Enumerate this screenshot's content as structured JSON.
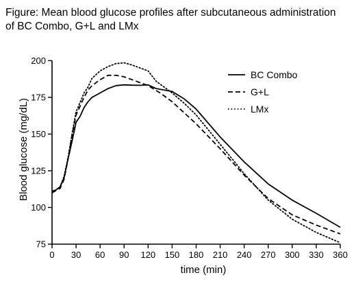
{
  "figure": {
    "title_line1": "Figure: Mean blood glucose profiles after subcutaneous administration",
    "title_line2": "of BC Combo, G+L and LMx"
  },
  "chart_data": {
    "type": "line",
    "title": "Figure: Mean blood glucose profiles after subcutaneous administration of BC Combo, G+L and LMx",
    "xlabel": "time (min)",
    "ylabel": "Blood glucose (mg/dL)",
    "xlim": [
      0,
      360
    ],
    "ylim": [
      75,
      210
    ],
    "xticks": [
      0,
      30,
      60,
      90,
      120,
      150,
      180,
      210,
      240,
      270,
      300,
      330,
      360
    ],
    "yticks": [
      75,
      100,
      125,
      150,
      175,
      200
    ],
    "grid": false,
    "legend_position": "top-right",
    "series": [
      {
        "name": "BC Combo",
        "line_style": "solid",
        "color": "#000000",
        "points": [
          [
            0,
            111
          ],
          [
            5,
            112
          ],
          [
            10,
            114
          ],
          [
            15,
            120
          ],
          [
            20,
            133
          ],
          [
            25,
            145
          ],
          [
            30,
            158
          ],
          [
            35,
            162
          ],
          [
            40,
            168
          ],
          [
            45,
            172
          ],
          [
            50,
            175
          ],
          [
            60,
            178
          ],
          [
            70,
            181
          ],
          [
            80,
            183
          ],
          [
            90,
            183.5
          ],
          [
            100,
            183.3
          ],
          [
            110,
            183.2
          ],
          [
            120,
            183.5
          ],
          [
            130,
            181
          ],
          [
            140,
            180
          ],
          [
            150,
            179
          ],
          [
            165,
            174
          ],
          [
            180,
            167
          ],
          [
            210,
            148
          ],
          [
            240,
            131
          ],
          [
            270,
            116
          ],
          [
            300,
            105
          ],
          [
            330,
            96
          ],
          [
            360,
            86.5
          ]
        ]
      },
      {
        "name": "G+L",
        "line_style": "dashed",
        "color": "#000000",
        "points": [
          [
            0,
            110
          ],
          [
            10,
            113
          ],
          [
            15,
            119
          ],
          [
            20,
            133
          ],
          [
            25,
            149
          ],
          [
            30,
            163
          ],
          [
            40,
            175
          ],
          [
            45,
            180
          ],
          [
            50,
            183
          ],
          [
            60,
            187
          ],
          [
            70,
            190
          ],
          [
            80,
            190
          ],
          [
            90,
            189
          ],
          [
            100,
            187
          ],
          [
            110,
            185
          ],
          [
            120,
            183
          ],
          [
            135,
            178
          ],
          [
            150,
            172
          ],
          [
            180,
            157
          ],
          [
            210,
            140
          ],
          [
            240,
            122
          ],
          [
            270,
            106
          ],
          [
            300,
            95
          ],
          [
            330,
            88
          ],
          [
            360,
            82
          ]
        ]
      },
      {
        "name": "LMx",
        "line_style": "dotted",
        "color": "#000000",
        "points": [
          [
            0,
            110
          ],
          [
            10,
            114
          ],
          [
            15,
            121
          ],
          [
            20,
            134
          ],
          [
            25,
            150
          ],
          [
            30,
            165
          ],
          [
            40,
            178
          ],
          [
            45,
            182
          ],
          [
            50,
            188
          ],
          [
            60,
            193
          ],
          [
            70,
            196
          ],
          [
            80,
            198
          ],
          [
            90,
            198.5
          ],
          [
            100,
            197
          ],
          [
            110,
            195
          ],
          [
            120,
            193
          ],
          [
            130,
            186
          ],
          [
            140,
            182
          ],
          [
            150,
            178
          ],
          [
            165,
            171
          ],
          [
            180,
            163
          ],
          [
            210,
            143
          ],
          [
            240,
            123
          ],
          [
            270,
            105
          ],
          [
            300,
            92
          ],
          [
            330,
            83
          ],
          [
            360,
            76
          ]
        ]
      }
    ]
  }
}
